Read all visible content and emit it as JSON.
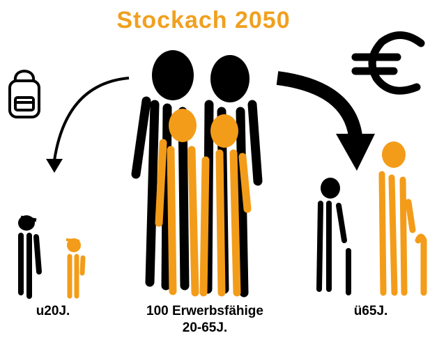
{
  "title": "Stockach 2050",
  "groups": [
    {
      "label": "u20J."
    },
    {
      "label": "100 Erwerbsfähige",
      "sublabel": "20-65J."
    },
    {
      "label": "ü65J."
    }
  ]
}
